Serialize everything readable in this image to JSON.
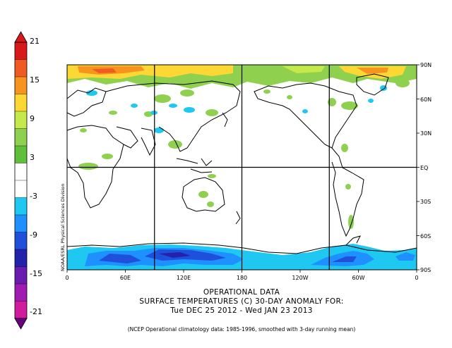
{
  "colorbar": {
    "labels": [
      "21",
      "15",
      "9",
      "3",
      "-3",
      "-9",
      "-15",
      "-21"
    ],
    "colors": [
      "#d7191c",
      "#ef5b22",
      "#f7941d",
      "#fdd835",
      "#c5e84b",
      "#8fd14f",
      "#5fbf3a",
      "#ffffff",
      "#ffffff",
      "#1ec8f0",
      "#1e90ff",
      "#1e50dc",
      "#2222aa",
      "#6a1bb0",
      "#a01cb0",
      "#d01c9c"
    ]
  },
  "map": {
    "lat_labels": [
      "90N",
      "60N",
      "30N",
      "EQ",
      "30S",
      "60S",
      "90S"
    ],
    "lon_labels": [
      "0",
      "60E",
      "120E",
      "180",
      "120W",
      "60W",
      "0"
    ],
    "side_label": "NOAA/ESRL Physical Sciences Division"
  },
  "title": {
    "line1": "OPERATIONAL DATA",
    "line2": "SURFACE TEMPERATURES (C)   30-DAY ANOMALY FOR:",
    "line3": "Tue DEC 25 2012 - Wed JAN 23 2013"
  },
  "footnote": "(NCEP Operational climatology data: 1985-1996, smoothed with 3-day running mean)"
}
